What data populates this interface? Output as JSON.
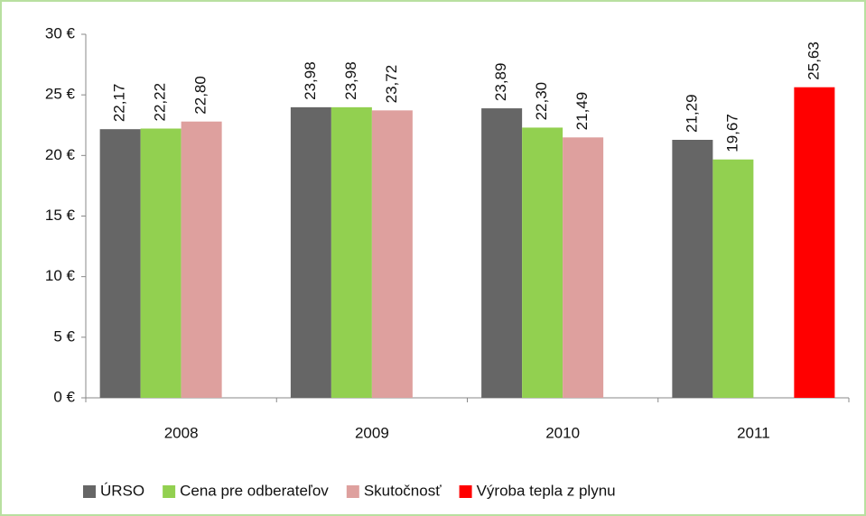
{
  "chart_data": {
    "type": "bar",
    "categories": [
      "2008",
      "2009",
      "2010",
      "2011"
    ],
    "series": [
      {
        "name": "ÚRSO",
        "color": "#666666",
        "values": [
          22.17,
          23.98,
          23.89,
          21.29
        ],
        "value_labels": [
          "22,17",
          "23,98",
          "23,89",
          "21,29"
        ]
      },
      {
        "name": "Cena pre odberateľov",
        "color": "#92d050",
        "values": [
          22.22,
          23.98,
          22.3,
          19.67
        ],
        "value_labels": [
          "22,22",
          "23,98",
          "22,30",
          "19,67"
        ]
      },
      {
        "name": "Skutočnosť",
        "color": "#dea09e",
        "values": [
          22.8,
          23.72,
          21.49,
          null
        ],
        "value_labels": [
          "22,80",
          "23,72",
          "21,49",
          null
        ]
      },
      {
        "name": "Výroba tepla z plynu",
        "color": "#ff0000",
        "values": [
          null,
          null,
          null,
          25.63
        ],
        "value_labels": [
          null,
          null,
          null,
          "25,63"
        ]
      }
    ],
    "ylim": [
      0,
      30
    ],
    "yticks": [
      {
        "value": 0,
        "label": "0 €"
      },
      {
        "value": 5,
        "label": "5 €"
      },
      {
        "value": 10,
        "label": "10 €"
      },
      {
        "value": 15,
        "label": "15 €"
      },
      {
        "value": 20,
        "label": "20 €"
      },
      {
        "value": 25,
        "label": "25 €"
      },
      {
        "value": 30,
        "label": "30 €"
      }
    ],
    "grid": false,
    "legend": "bottom"
  }
}
